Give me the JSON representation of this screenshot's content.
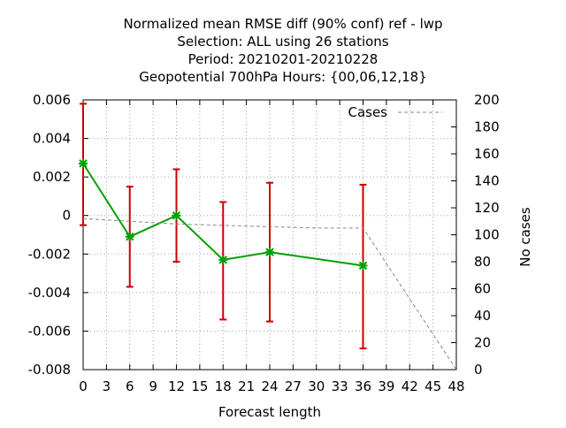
{
  "chart_data": {
    "type": "line",
    "title_lines": [
      "Normalized mean RMSE diff (90% conf) ref - lwp",
      "Selection: ALL using    26 stations",
      "Period: 20210201-20210228",
      "Geopotential 700hPa   Hours: {00,06,12,18}"
    ],
    "xlabel": "Forecast length",
    "ylabel": "",
    "y2label": "No cases",
    "xlim": [
      0,
      48
    ],
    "ylim": [
      -0.008,
      0.006
    ],
    "y2lim": [
      0,
      200
    ],
    "x_ticks": [
      "0",
      "3",
      "6",
      "9",
      "12",
      "15",
      "18",
      "21",
      "24",
      "27",
      "30",
      "33",
      "36",
      "39",
      "42",
      "45",
      "48"
    ],
    "y_ticks": [
      "0.006",
      "0.004",
      "0.002",
      "0",
      "-0.002",
      "-0.004",
      "-0.006",
      "-0.008"
    ],
    "y2_ticks": [
      "200",
      "180",
      "160",
      "140",
      "120",
      "100",
      "80",
      "60",
      "40",
      "20",
      "0"
    ],
    "grid": true,
    "legend_position": "top-right",
    "series": [
      {
        "name": "",
        "axis": "y",
        "color": "#00a000",
        "x": [
          0,
          6,
          12,
          18,
          24,
          36
        ],
        "y": [
          0.0027,
          -0.0011,
          0.0,
          -0.0023,
          -0.0019,
          -0.0026
        ],
        "err_low": [
          -0.0005,
          -0.0037,
          -0.0024,
          -0.0054,
          -0.0055,
          -0.0069
        ],
        "err_high": [
          0.0058,
          0.0015,
          0.0024,
          0.0007,
          0.0017,
          0.0016
        ],
        "err_color": "#cc0000"
      },
      {
        "name": "Cases",
        "axis": "y2",
        "color": "#888888",
        "dashed": true,
        "x": [
          0,
          6,
          12,
          18,
          24,
          30,
          36,
          48
        ],
        "y": [
          112,
          110,
          108,
          107,
          106,
          105,
          105,
          0
        ]
      }
    ]
  }
}
